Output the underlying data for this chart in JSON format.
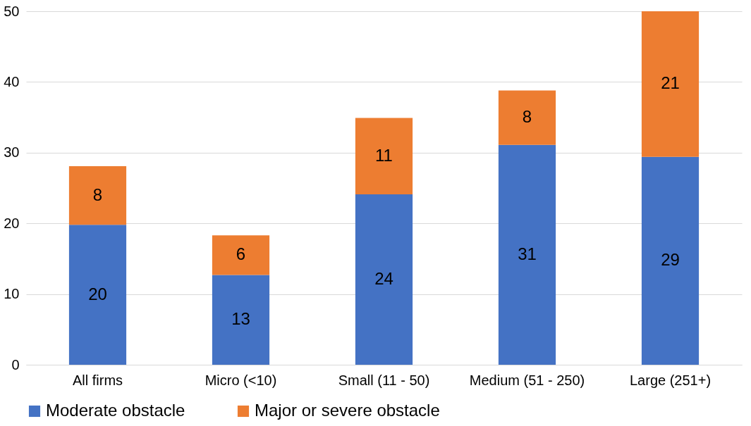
{
  "chart_data": {
    "type": "bar",
    "stacked": true,
    "categories": [
      "All firms",
      "Micro (<10)",
      "Small (11 - 50)",
      "Medium (51 - 250)",
      "Large (251+)"
    ],
    "series": [
      {
        "name": "Moderate obstacle",
        "color": "#4472c4",
        "values": [
          19.8,
          12.7,
          24.1,
          31.1,
          29.4
        ],
        "value_labels": [
          "20",
          "13",
          "24",
          "31",
          "29"
        ]
      },
      {
        "name": "Major or severe obstacle",
        "color": "#ed7d31",
        "values": [
          8.3,
          5.6,
          10.8,
          7.7,
          20.6
        ],
        "value_labels": [
          "8",
          "6",
          "11",
          "8",
          "21"
        ]
      }
    ],
    "ylim": [
      0,
      50
    ],
    "yticks": [
      0,
      10,
      20,
      30,
      40,
      50
    ],
    "grid": "y",
    "legend": "bottom"
  }
}
